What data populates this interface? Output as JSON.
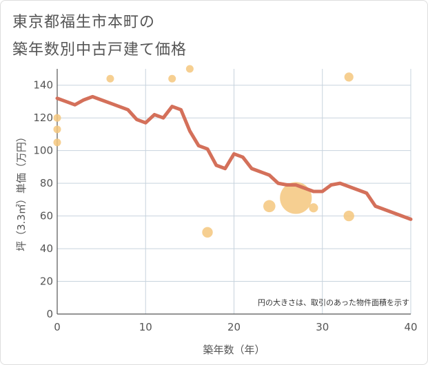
{
  "title_line1": "東京都福生市本町の",
  "title_line2": "築年数別中古戸建て価格",
  "chart_data": {
    "type": "scatter",
    "title": "東京都福生市本町の築年数別中古戸建て価格",
    "xlabel": "築年数（年）",
    "ylabel": "坪（3.3㎡）単価（万円）",
    "xlim": [
      0,
      40
    ],
    "ylim": [
      0,
      150
    ],
    "x_ticks": [
      0,
      10,
      20,
      30,
      40
    ],
    "y_ticks": [
      0,
      20,
      40,
      60,
      80,
      100,
      120,
      140
    ],
    "note": "円の大きさは、取引のあった物件面積を示す",
    "colors": {
      "bubble": "#f5c77e",
      "line": "#d4705a",
      "grid": "#c7d3dd",
      "axis": "#555555"
    },
    "scatter": [
      {
        "x": 0,
        "y": 120,
        "size": 1
      },
      {
        "x": 0,
        "y": 113,
        "size": 1
      },
      {
        "x": 0,
        "y": 105,
        "size": 1
      },
      {
        "x": 6,
        "y": 144,
        "size": 1
      },
      {
        "x": 13,
        "y": 144,
        "size": 1
      },
      {
        "x": 15,
        "y": 150,
        "size": 1
      },
      {
        "x": 17,
        "y": 50,
        "size": 1.4
      },
      {
        "x": 24,
        "y": 66,
        "size": 1.6
      },
      {
        "x": 27,
        "y": 71,
        "size": 4.2
      },
      {
        "x": 29,
        "y": 65,
        "size": 1.2
      },
      {
        "x": 33,
        "y": 145,
        "size": 1.2
      },
      {
        "x": 33,
        "y": 60,
        "size": 1.4
      }
    ],
    "trend": {
      "x": [
        0,
        1,
        2,
        3,
        4,
        5,
        6,
        7,
        8,
        9,
        10,
        11,
        12,
        13,
        14,
        15,
        16,
        17,
        18,
        19,
        20,
        21,
        22,
        23,
        24,
        25,
        26,
        27,
        28,
        29,
        30,
        31,
        32,
        33,
        34,
        35,
        36,
        37,
        38,
        39,
        40
      ],
      "y": [
        132,
        130,
        128,
        131,
        133,
        131,
        129,
        127,
        125,
        119,
        117,
        122,
        120,
        127,
        125,
        112,
        103,
        101,
        91,
        89,
        98,
        96,
        89,
        87,
        85,
        80,
        79,
        79,
        77,
        75,
        75,
        79,
        80,
        78,
        76,
        74,
        66,
        64,
        62,
        60,
        58
      ]
    }
  }
}
